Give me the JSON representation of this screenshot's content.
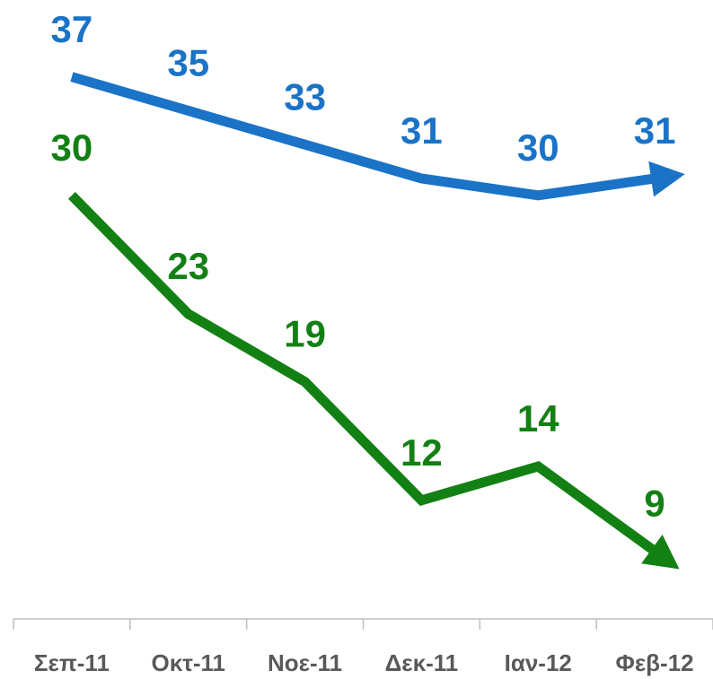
{
  "chart_data": {
    "type": "line",
    "categories": [
      "Σεπ-11",
      "Οκτ-11",
      "Νοε-11",
      "Δεκ-11",
      "Ιαν-12",
      "Φεβ-12"
    ],
    "series": [
      {
        "color": "#1a73c6",
        "values": [
          37,
          35,
          33,
          31,
          30,
          31
        ]
      },
      {
        "color": "#138013",
        "values": [
          30,
          23,
          19,
          12,
          14,
          9
        ]
      }
    ],
    "ylim": [
      5,
      40
    ],
    "grid": false
  }
}
